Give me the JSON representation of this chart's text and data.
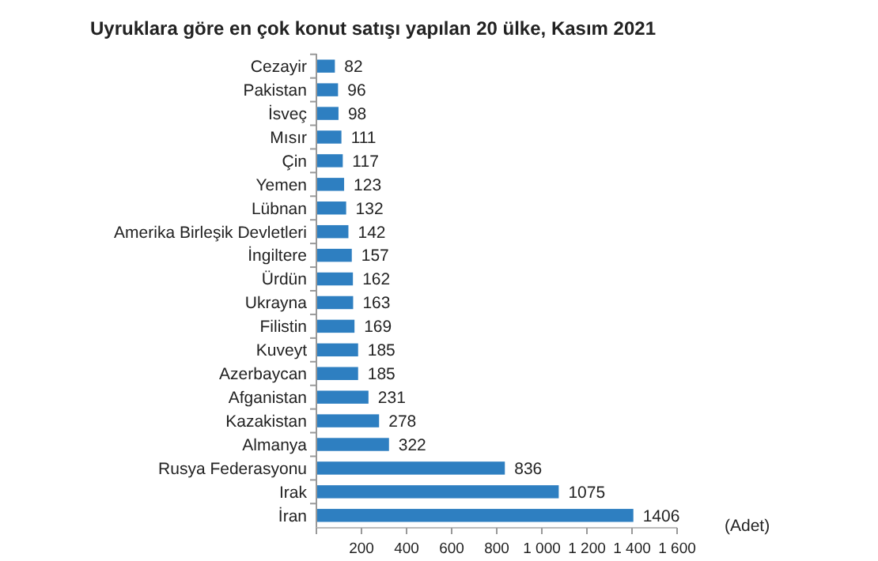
{
  "chart_data": {
    "type": "bar",
    "orientation": "horizontal",
    "title": "Uyruklara göre en çok konut satışı yapılan 20 ülke, Kasım 2021",
    "xlabel": "(Adet)",
    "categories": [
      "Cezayir",
      "Pakistan",
      "İsveç",
      "Mısır",
      "Çin",
      "Yemen",
      "Lübnan",
      "Amerika Birleşik Devletleri",
      "İngiltere",
      "Ürdün",
      "Ukrayna",
      "Filistin",
      "Kuveyt",
      "Azerbaycan",
      "Afganistan",
      "Kazakistan",
      "Almanya",
      "Rusya Federasyonu",
      "Irak",
      "İran"
    ],
    "values": [
      82,
      96,
      98,
      111,
      117,
      123,
      132,
      142,
      157,
      162,
      163,
      169,
      185,
      185,
      231,
      278,
      322,
      836,
      1075,
      1406
    ],
    "color": "#2e7fc1",
    "data_labels": true,
    "grid": false,
    "xlim": [
      0,
      1600
    ],
    "xticks": [
      {
        "value": 0,
        "label": null
      },
      200,
      400,
      600,
      800,
      {
        "value": 1000,
        "label": "1 000"
      },
      {
        "value": 1200,
        "label": "1 200"
      },
      {
        "value": 1400,
        "label": "1 400"
      },
      {
        "value": 1600,
        "label": "1 600"
      }
    ]
  }
}
